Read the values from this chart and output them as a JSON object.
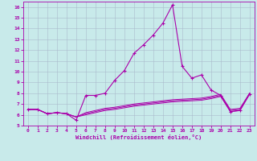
{
  "xlabel": "Windchill (Refroidissement éolien,°C)",
  "background_color": "#c8eaea",
  "line_color": "#aa00aa",
  "grid_color": "#aabbcc",
  "x_values": [
    0,
    1,
    2,
    3,
    4,
    5,
    6,
    7,
    8,
    9,
    10,
    11,
    12,
    13,
    14,
    15,
    16,
    17,
    18,
    19,
    20,
    21,
    22,
    23
  ],
  "line1": [
    6.5,
    6.5,
    6.1,
    6.2,
    6.1,
    5.5,
    7.8,
    7.8,
    8.0,
    9.2,
    10.1,
    11.7,
    12.5,
    13.4,
    14.5,
    16.2,
    10.5,
    9.4,
    9.7,
    8.3,
    7.8,
    6.3,
    6.4,
    7.9
  ],
  "line2": [
    6.5,
    6.5,
    6.1,
    6.2,
    6.1,
    5.8,
    6.2,
    6.4,
    6.6,
    6.7,
    6.85,
    7.0,
    7.1,
    7.2,
    7.3,
    7.4,
    7.45,
    7.5,
    7.55,
    7.7,
    7.9,
    6.5,
    6.6,
    8.0
  ],
  "line3": [
    6.5,
    6.5,
    6.1,
    6.2,
    6.1,
    5.8,
    6.1,
    6.3,
    6.5,
    6.6,
    6.75,
    6.9,
    7.0,
    7.1,
    7.2,
    7.3,
    7.35,
    7.4,
    7.45,
    7.6,
    7.8,
    6.4,
    6.5,
    8.0
  ],
  "line4": [
    6.5,
    6.5,
    6.1,
    6.2,
    6.1,
    5.8,
    6.0,
    6.2,
    6.4,
    6.5,
    6.65,
    6.8,
    6.9,
    7.0,
    7.1,
    7.2,
    7.25,
    7.3,
    7.35,
    7.5,
    7.7,
    6.3,
    6.4,
    8.0
  ],
  "ylim": [
    5,
    16.5
  ],
  "xlim": [
    -0.5,
    23.5
  ],
  "yticks": [
    5,
    6,
    7,
    8,
    9,
    10,
    11,
    12,
    13,
    14,
    15,
    16
  ],
  "xticks": [
    0,
    1,
    2,
    3,
    4,
    5,
    6,
    7,
    8,
    9,
    10,
    11,
    12,
    13,
    14,
    15,
    16,
    17,
    18,
    19,
    20,
    21,
    22,
    23
  ]
}
